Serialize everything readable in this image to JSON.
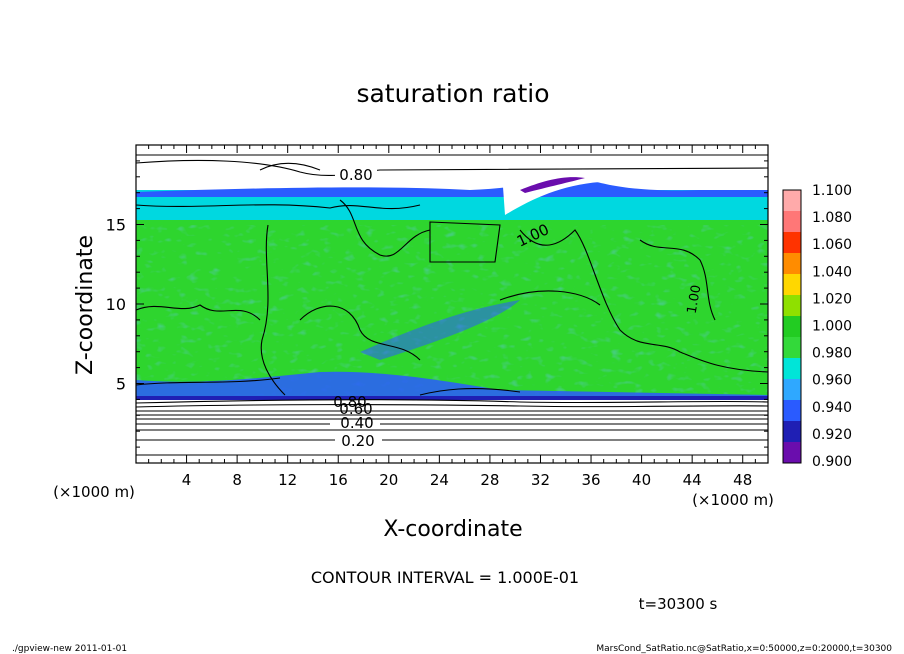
{
  "chart_data": {
    "type": "heatmap",
    "title": "saturation ratio",
    "xlabel": "X-coordinate",
    "ylabel": "Z-coordinate",
    "x_unit": "(×1000 m)",
    "z_unit": "(×1000 m)",
    "x_ticks": [
      "4",
      "8",
      "12",
      "16",
      "20",
      "24",
      "28",
      "32",
      "36",
      "40",
      "44",
      "48"
    ],
    "z_ticks": [
      "5",
      "10",
      "15"
    ],
    "xlim": [
      0,
      50
    ],
    "zlim": [
      0,
      20
    ],
    "colorbar": {
      "levels": [
        "0.900",
        "0.920",
        "0.940",
        "0.960",
        "0.980",
        "1.000",
        "1.020",
        "1.040",
        "1.060",
        "1.080",
        "1.100"
      ],
      "colors": [
        "#6a0dad",
        "#1f1fb4",
        "#2a5bff",
        "#2fa8ff",
        "#00e5d8",
        "#33d93a",
        "#22cc22",
        "#8fe000",
        "#ffd700",
        "#ff8c00",
        "#ff3300",
        "#ff7777",
        "#ffaaaa"
      ]
    },
    "contour_interval": "CONTOUR INTERVAL = 1.000E-01",
    "contour_labels": [
      "0.80",
      "0.80",
      "0.60",
      "0.40",
      "0.20",
      "1.00",
      "1.00"
    ],
    "time": "t=30300 s",
    "grid": false
  },
  "footer": {
    "left": "./gpview-new  2011-01-01",
    "right": "MarsCond_SatRatio.nc@SatRatio,x=0:50000,z=0:20000,t=30300"
  }
}
